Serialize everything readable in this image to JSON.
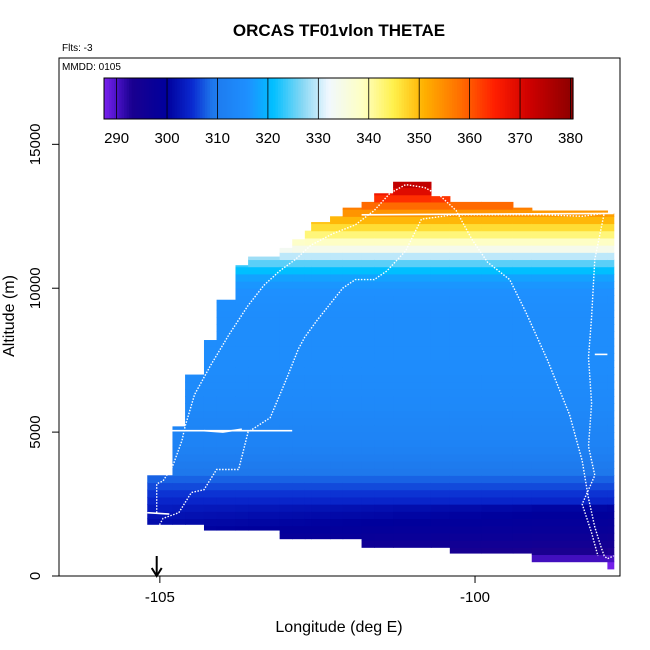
{
  "chart_data": {
    "type": "heatmap",
    "title": "ORCAS TF01vlon THETAE",
    "flights_label": "Flts: -3",
    "date_label": "MMDD: 0105",
    "xlabel": "Longitude (deg E)",
    "ylabel": "Altitude (m)",
    "xlim": [
      -106.6,
      -97.7
    ],
    "ylim": [
      0,
      18000
    ],
    "xticks": [
      -105,
      -100
    ],
    "xtick_labels": [
      "-105",
      "-100"
    ],
    "yticks": [
      0,
      5000,
      10000,
      15000
    ],
    "ytick_labels": [
      "0",
      "5000",
      "10000",
      "15000"
    ],
    "colorbar": {
      "min": 287.5,
      "max": 380.5,
      "ticks": [
        290,
        300,
        310,
        320,
        330,
        340,
        350,
        360,
        370,
        380
      ],
      "tick_labels": [
        "290",
        "300",
        "310",
        "320",
        "330",
        "340",
        "350",
        "360",
        "370",
        "380"
      ],
      "stops": [
        [
          287.5,
          "#7a22ee"
        ],
        [
          290,
          "#4b12c8"
        ],
        [
          293,
          "#1a0090"
        ],
        [
          300,
          "#00009c"
        ],
        [
          305,
          "#0a2ad0"
        ],
        [
          309,
          "#1e78ec"
        ],
        [
          316,
          "#1e90ff"
        ],
        [
          321,
          "#00bfff"
        ],
        [
          327,
          "#8ad8f4"
        ],
        [
          332,
          "#f0f8ff"
        ],
        [
          339,
          "#ffffc0"
        ],
        [
          345,
          "#fff04a"
        ],
        [
          351,
          "#ffb000"
        ],
        [
          358,
          "#ff7000"
        ],
        [
          365,
          "#ff1e00"
        ],
        [
          372,
          "#cd0000"
        ],
        [
          380.5,
          "#8b0000"
        ]
      ]
    },
    "columns": [
      {
        "x0": -105.2,
        "x1": -104.8,
        "top": 3500
      },
      {
        "x0": -104.8,
        "x1": -104.6,
        "top": 5200
      },
      {
        "x0": -104.6,
        "x1": -104.3,
        "top": 7000
      },
      {
        "x0": -104.3,
        "x1": -104.1,
        "top": 8200
      },
      {
        "x0": -104.1,
        "x1": -103.8,
        "top": 9600
      },
      {
        "x0": -103.8,
        "x1": -103.6,
        "top": 10800
      },
      {
        "x0": -103.6,
        "x1": -103.1,
        "top": 11100
      },
      {
        "x0": -103.1,
        "x1": -102.9,
        "top": 11400
      },
      {
        "x0": -102.9,
        "x1": -102.7,
        "top": 11700
      },
      {
        "x0": -102.7,
        "x1": -102.6,
        "top": 12000
      },
      {
        "x0": -102.6,
        "x1": -102.3,
        "top": 12300
      },
      {
        "x0": -102.3,
        "x1": -102.1,
        "top": 12500
      },
      {
        "x0": -102.1,
        "x1": -101.8,
        "top": 12800
      },
      {
        "x0": -101.8,
        "x1": -101.6,
        "top": 13000
      },
      {
        "x0": -101.6,
        "x1": -101.3,
        "top": 13300
      },
      {
        "x0": -101.3,
        "x1": -100.7,
        "top": 13700
      },
      {
        "x0": -100.7,
        "x1": -100.4,
        "top": 13200
      },
      {
        "x0": -100.4,
        "x1": -99.9,
        "top": 13000
      },
      {
        "x0": -99.9,
        "x1": -99.4,
        "top": 13000
      },
      {
        "x0": -99.4,
        "x1": -99.1,
        "top": 12800
      },
      {
        "x0": -99.1,
        "x1": -97.9,
        "top": 12700
      },
      {
        "x0": -97.9,
        "x1": -97.8,
        "top": 12600
      }
    ],
    "bottoms": [
      {
        "x0": -105.2,
        "x1": -104.4,
        "bottom": 1800
      },
      {
        "x0": -104.4,
        "x1": -103.3,
        "bottom": 1600
      },
      {
        "x0": -103.3,
        "x1": -101.9,
        "bottom": 1300
      },
      {
        "x0": -101.9,
        "x1": -100.3,
        "bottom": 1000
      },
      {
        "x0": -100.3,
        "x1": -99.1,
        "bottom": 800
      },
      {
        "x0": -99.1,
        "x1": -98.4,
        "bottom": 500
      },
      {
        "x0": -98.4,
        "x1": -97.8,
        "bottom": 250
      }
    ],
    "profile": [
      [
        0,
        287
      ],
      [
        500,
        292
      ],
      [
        900,
        296
      ],
      [
        1500,
        300
      ],
      [
        2300,
        303
      ],
      [
        3000,
        306
      ],
      [
        3600,
        309
      ],
      [
        4500,
        312
      ],
      [
        6000,
        314
      ],
      [
        7500,
        315
      ],
      [
        9000,
        315
      ],
      [
        10000,
        316
      ],
      [
        10400,
        318
      ],
      [
        10700,
        322
      ],
      [
        11000,
        327
      ],
      [
        11300,
        333
      ],
      [
        11600,
        338
      ],
      [
        11900,
        343
      ],
      [
        12200,
        348
      ],
      [
        12500,
        352
      ],
      [
        12800,
        357
      ],
      [
        13100,
        363
      ],
      [
        13400,
        370
      ],
      [
        13800,
        377
      ]
    ],
    "track": [
      [
        -105.05,
        2200
      ],
      [
        -105.05,
        3200
      ],
      [
        -104.95,
        3300
      ],
      [
        -104.8,
        3800
      ],
      [
        -104.65,
        4700
      ],
      [
        -104.6,
        5200
      ],
      [
        -104.45,
        6300
      ],
      [
        -104.2,
        7300
      ],
      [
        -103.9,
        8400
      ],
      [
        -103.6,
        9400
      ],
      [
        -103.35,
        10100
      ],
      [
        -103.1,
        10600
      ],
      [
        -102.85,
        11000
      ],
      [
        -102.6,
        11500
      ],
      [
        -102.25,
        11900
      ],
      [
        -101.9,
        12200
      ],
      [
        -101.6,
        12700
      ],
      [
        -101.35,
        13300
      ],
      [
        -101.1,
        13600
      ],
      [
        -100.8,
        13500
      ],
      [
        -100.55,
        13200
      ],
      [
        -100.3,
        12700
      ],
      [
        -100.05,
        11700
      ],
      [
        -99.8,
        10900
      ],
      [
        -99.45,
        10300
      ],
      [
        -99.2,
        9200
      ],
      [
        -98.85,
        7500
      ],
      [
        -98.5,
        5600
      ],
      [
        -98.3,
        4000
      ],
      [
        -98.2,
        2700
      ],
      [
        -98.1,
        1700
      ],
      [
        -98.0,
        1000
      ],
      [
        -97.95,
        700
      ],
      [
        -97.9,
        600
      ],
      [
        -97.8,
        700
      ]
    ],
    "track_legs": [
      [
        [
          -104.95,
          5050
        ],
        [
          -102.9,
          5050
        ]
      ],
      [
        [
          -104.3,
          5050
        ],
        [
          -104.0,
          5000
        ],
        [
          -103.7,
          5100
        ]
      ],
      [
        [
          -101.8,
          12550
        ],
        [
          -97.8,
          12600
        ]
      ],
      [
        [
          -98.1,
          7700
        ],
        [
          -97.9,
          7700
        ]
      ],
      [
        [
          -105.2,
          2200
        ],
        [
          -104.85,
          2150
        ]
      ]
    ],
    "profile_line": [
      [
        -105.05,
        1600
      ],
      [
        -104.95,
        2000
      ],
      [
        -104.7,
        2200
      ],
      [
        -104.5,
        2900
      ],
      [
        -104.3,
        3000
      ],
      [
        -104.1,
        3700
      ],
      [
        -103.75,
        3700
      ],
      [
        -103.6,
        5000
      ],
      [
        -103.25,
        5500
      ],
      [
        -103.0,
        6800
      ],
      [
        -102.8,
        7900
      ],
      [
        -102.7,
        8300
      ],
      [
        -102.5,
        8900
      ],
      [
        -102.1,
        10000
      ],
      [
        -101.9,
        10300
      ],
      [
        -101.6,
        10300
      ],
      [
        -101.4,
        10600
      ],
      [
        -101.1,
        11300
      ],
      [
        -100.85,
        12400
      ],
      [
        -100.35,
        12550
      ],
      [
        -98.9,
        12550
      ],
      [
        -98.3,
        12500
      ],
      [
        -97.95,
        12600
      ],
      [
        -98.1,
        11000
      ],
      [
        -98.15,
        9000
      ],
      [
        -98.2,
        7600
      ],
      [
        -98.15,
        6000
      ],
      [
        -98.2,
        4500
      ],
      [
        -98.1,
        3500
      ],
      [
        -98.3,
        2500
      ],
      [
        -98.15,
        1500
      ],
      [
        -98.05,
        700
      ]
    ],
    "arrow_x": -105.05
  }
}
